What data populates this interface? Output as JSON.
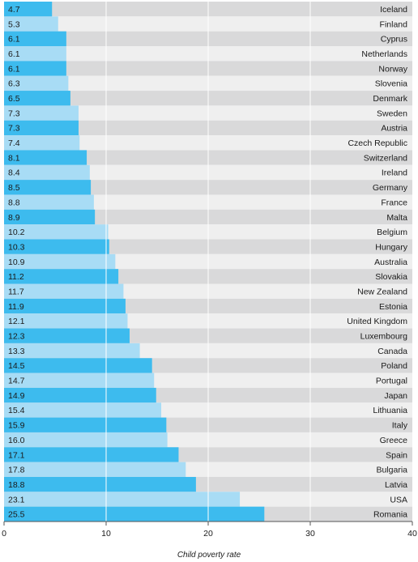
{
  "chart_data": {
    "type": "bar",
    "orientation": "horizontal",
    "xlabel": "Child poverty rate",
    "xlim": [
      0,
      40
    ],
    "xticks": [
      0,
      10,
      20,
      30,
      40
    ],
    "grid": true,
    "categories": [
      "Iceland",
      "Finland",
      "Cyprus",
      "Netherlands",
      "Norway",
      "Slovenia",
      "Denmark",
      "Sweden",
      "Austria",
      "Czech Republic",
      "Switzerland",
      "Ireland",
      "Germany",
      "France",
      "Malta",
      "Belgium",
      "Hungary",
      "Australia",
      "Slovakia",
      "New Zealand",
      "Estonia",
      "United Kingdom",
      "Luxembourg",
      "Canada",
      "Poland",
      "Portugal",
      "Japan",
      "Lithuania",
      "Italy",
      "Greece",
      "Spain",
      "Bulgaria",
      "Latvia",
      "USA",
      "Romania"
    ],
    "value_labels": [
      "4.7",
      "5.3",
      "6.1",
      "6.1",
      "6.1",
      "6.3",
      "6.5",
      "7.3",
      "7.3",
      "7.4",
      "8.1",
      "8.4",
      "8.5",
      "8.8",
      "8.9",
      "10.2",
      "10.3",
      "10.9",
      "11.2",
      "11.7",
      "11.9",
      "12.1",
      "12.3",
      "13.3",
      "14.5",
      "14.7",
      "14.9",
      "15.4",
      "15.9",
      "16.0",
      "17.1",
      "17.8",
      "18.8",
      "23.1",
      "25.5"
    ],
    "values": [
      4.7,
      5.3,
      6.1,
      6.1,
      6.1,
      6.3,
      6.5,
      7.3,
      7.3,
      7.4,
      8.1,
      8.4,
      8.5,
      8.8,
      8.9,
      10.2,
      10.3,
      10.9,
      11.2,
      11.7,
      11.9,
      12.1,
      12.3,
      13.3,
      14.5,
      14.7,
      14.9,
      15.4,
      15.9,
      16.0,
      17.1,
      17.8,
      18.8,
      23.1,
      25.5
    ],
    "colors": {
      "bar_dark": "#3dbbee",
      "bar_light": "#a8dcf5",
      "row_dark": "#d9d9da",
      "row_light": "#efefef",
      "grid": "#ffffff"
    }
  }
}
